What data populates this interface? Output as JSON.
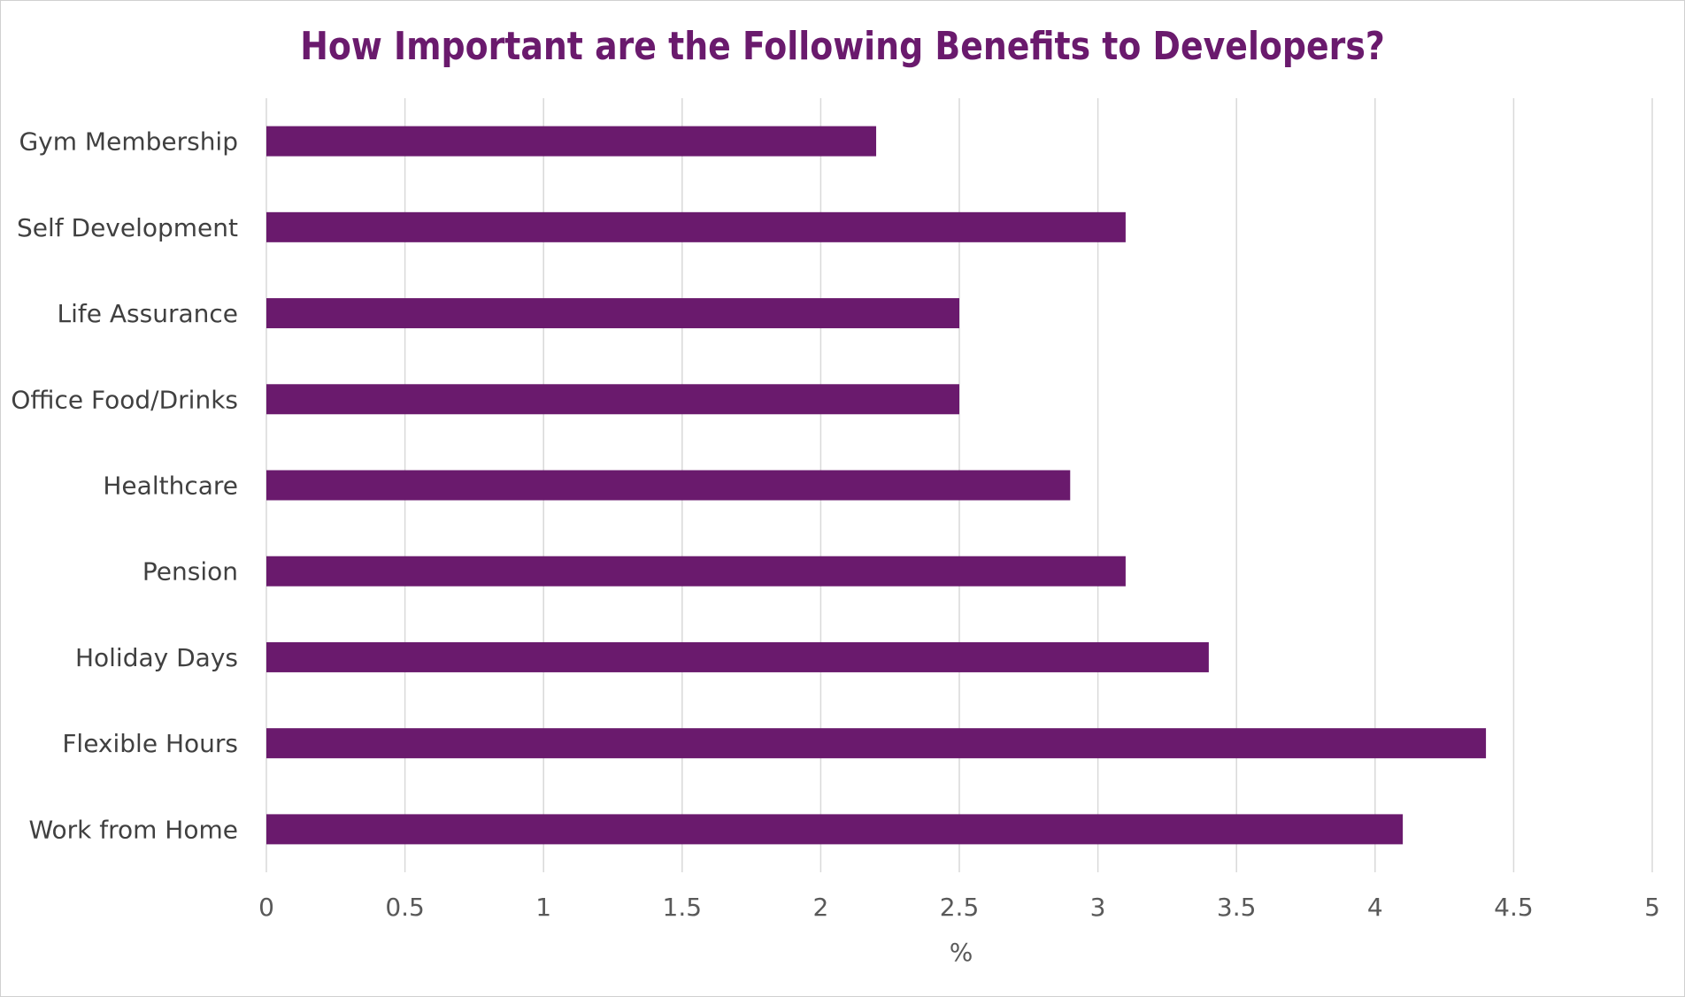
{
  "chart_data": {
    "type": "bar",
    "orientation": "horizontal",
    "title": "How Important are the Following Benefits to Developers?",
    "xlabel": "%",
    "ylabel": "",
    "categories": [
      "Work from Home",
      "Flexible Hours",
      "Holiday Days",
      "Pension",
      "Healthcare",
      "Office Food/Drinks",
      "Life Assurance",
      "Self Development",
      "Gym Membership"
    ],
    "values": [
      4.1,
      4.4,
      3.4,
      3.1,
      2.9,
      2.5,
      2.5,
      3.1,
      2.2
    ],
    "xlim": [
      0,
      5
    ],
    "xticks": [
      "0",
      "0.5",
      "1",
      "1.5",
      "2",
      "2.5",
      "3",
      "3.5",
      "4",
      "4.5",
      "5"
    ],
    "grid": true,
    "legend": "none",
    "colors": {
      "bar": "#6a1a6d",
      "title": "#6a1a6d",
      "grid": "#d9d9d9"
    }
  }
}
